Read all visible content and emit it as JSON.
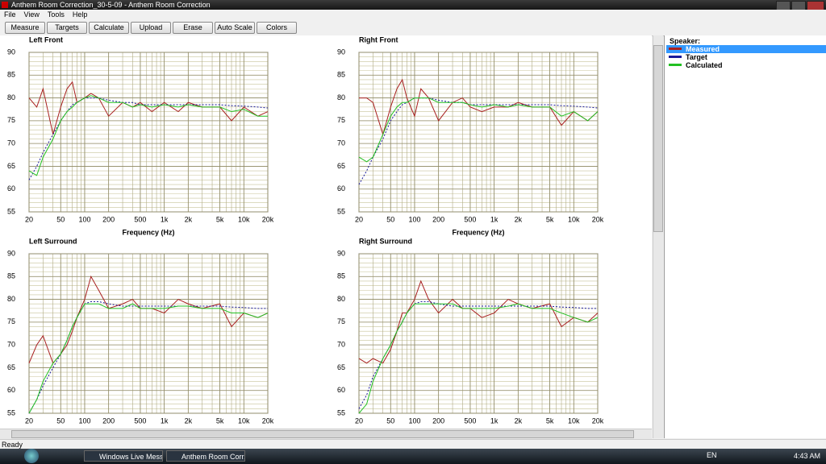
{
  "window": {
    "title": "Anthem Room Correction_30-5-09 - Anthem Room Correction"
  },
  "menu": [
    "File",
    "View",
    "Tools",
    "Help"
  ],
  "toolbar": [
    "Measure",
    "Targets",
    "Calculate",
    "Upload",
    "Erase",
    "Auto Scale",
    "Colors"
  ],
  "legend": {
    "title": "Speaker:",
    "items": [
      {
        "name": "Measured",
        "color": "#a82020",
        "style": "solid"
      },
      {
        "name": "Target",
        "color": "#1a1a9a",
        "style": "dashed"
      },
      {
        "name": "Calculated",
        "color": "#22c022",
        "style": "solid"
      }
    ]
  },
  "plot": {
    "log_x": true,
    "grid": true,
    "xlim": [
      20,
      20000
    ],
    "ylim": [
      55,
      90
    ],
    "xticks": [
      20,
      50,
      100,
      200,
      500,
      {
        "value": 1000,
        "label": "1k"
      },
      {
        "value": 2000,
        "label": "2k"
      },
      {
        "value": 5000,
        "label": "5k"
      },
      {
        "value": 10000,
        "label": "10k"
      },
      {
        "value": 20000,
        "label": "20k"
      }
    ],
    "yticks": [
      90,
      85,
      80,
      75,
      70,
      65,
      60,
      55
    ],
    "x": [
      20,
      25,
      30,
      40,
      50,
      60,
      70,
      80,
      100,
      120,
      150,
      200,
      300,
      400,
      500,
      700,
      1000,
      1500,
      2000,
      3000,
      5000,
      7000,
      10000,
      15000,
      20000
    ]
  },
  "charts": [
    {
      "title": "Left Front",
      "xlabel": "Frequency (Hz)",
      "series": [
        {
          "values": [
            80,
            78,
            82,
            72,
            78,
            82,
            83.5,
            79,
            80,
            81,
            80,
            76,
            79,
            78,
            79,
            77,
            79,
            77,
            79,
            78,
            78,
            75,
            78,
            76,
            77
          ]
        },
        {
          "values": [
            62,
            65,
            68,
            72,
            75,
            77,
            78.5,
            79,
            80,
            80,
            80,
            79.5,
            79,
            79,
            78.5,
            78.5,
            78.5,
            78.5,
            78.5,
            78.5,
            78.5,
            78.3,
            78.2,
            78,
            77.8
          ]
        },
        {
          "values": [
            64,
            63,
            67,
            71,
            75,
            77,
            78,
            79,
            80,
            80.5,
            80,
            79,
            79,
            78,
            78.5,
            78,
            78.5,
            78,
            78.5,
            78,
            78,
            77,
            77.5,
            76,
            76
          ]
        }
      ]
    },
    {
      "title": "Right Front",
      "xlabel": "Frequency (Hz)",
      "series": [
        {
          "values": [
            80,
            80,
            79,
            72,
            78,
            82,
            84,
            80,
            76,
            82,
            80,
            75,
            79,
            80,
            78,
            77,
            78,
            78,
            79,
            78,
            78,
            74,
            77,
            75,
            77
          ]
        },
        {
          "values": [
            61,
            64,
            67,
            71,
            75,
            77,
            78.5,
            79,
            80,
            80,
            80,
            79.5,
            79,
            79,
            78.5,
            78.5,
            78.5,
            78.5,
            78.5,
            78.5,
            78.5,
            78.3,
            78.2,
            78,
            77.8
          ]
        },
        {
          "values": [
            67,
            66,
            67,
            72,
            76,
            78,
            79,
            79,
            80,
            80,
            80,
            79,
            79,
            79,
            78.5,
            78,
            78.5,
            78,
            78.5,
            78,
            78,
            76,
            77,
            75,
            77
          ]
        }
      ]
    },
    {
      "title": "Left Surround",
      "series": [
        {
          "values": [
            66,
            70,
            72,
            66,
            68,
            70,
            73,
            76,
            80,
            85,
            82,
            78,
            79,
            80,
            78,
            78,
            77,
            80,
            79,
            78,
            79,
            74,
            77,
            76,
            77
          ]
        },
        {
          "values": [
            55,
            58,
            61,
            65,
            68,
            71,
            74,
            76,
            79,
            79.5,
            79.5,
            79,
            78.5,
            78.5,
            78.5,
            78.5,
            78.5,
            78.5,
            78.5,
            78.5,
            78.5,
            78.3,
            78.2,
            78,
            78
          ]
        },
        {
          "values": [
            55,
            58,
            62,
            66,
            68,
            71,
            74,
            76,
            79,
            79,
            79,
            78,
            78,
            79,
            78,
            78,
            78,
            78.5,
            78.5,
            78,
            78,
            77,
            77,
            76,
            77
          ]
        }
      ]
    },
    {
      "title": "Right Surround",
      "series": [
        {
          "values": [
            67,
            66,
            67,
            66,
            69,
            73,
            77,
            77,
            80,
            84,
            80,
            77,
            80,
            78,
            78,
            76,
            77,
            80,
            79,
            78,
            79,
            74,
            76,
            75,
            77
          ]
        },
        {
          "values": [
            56,
            59,
            63,
            67,
            70,
            73,
            75,
            77,
            79,
            79.5,
            79.5,
            79,
            78.5,
            78.5,
            78.5,
            78.5,
            78.5,
            78.5,
            78.5,
            78.5,
            78.5,
            78.3,
            78.2,
            78,
            78
          ]
        },
        {
          "values": [
            55,
            57,
            62,
            67,
            70,
            73,
            75,
            77,
            79,
            79,
            79,
            79,
            79,
            78,
            78,
            78,
            78,
            78.5,
            79,
            78,
            78,
            77,
            76,
            75,
            76
          ]
        }
      ]
    }
  ],
  "status": "Ready",
  "taskbar": {
    "items": [
      "Windows Live Mess...",
      "Anthem Room Corr..."
    ],
    "language": "EN",
    "clock": "4:43 AM"
  }
}
